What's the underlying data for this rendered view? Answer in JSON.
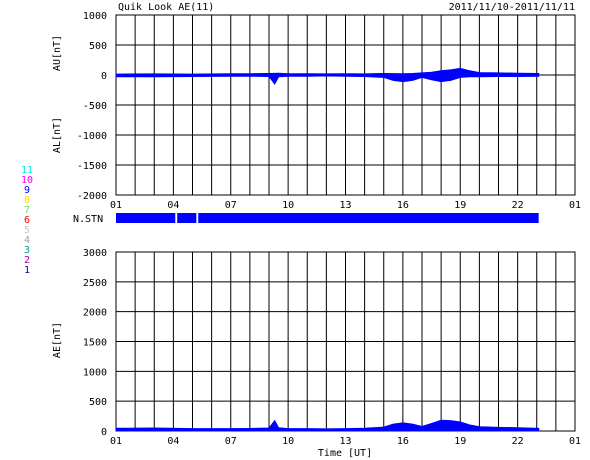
{
  "header": {
    "title": "Quik Look AE(11)",
    "date_range": "2011/11/10-2011/11/11"
  },
  "legend": {
    "stations": [
      {
        "label": "11",
        "color": "#00e5ee"
      },
      {
        "label": "10",
        "color": "#ff00ff"
      },
      {
        "label": "9",
        "color": "#0000ff"
      },
      {
        "label": "8",
        "color": "#ffd700"
      },
      {
        "label": "7",
        "color": "#66dd66"
      },
      {
        "label": "6",
        "color": "#ff0000"
      },
      {
        "label": "5",
        "color": "#c8c8c8"
      },
      {
        "label": "4",
        "color": "#a0a0a0"
      },
      {
        "label": "3",
        "color": "#00a0a0"
      },
      {
        "label": "2",
        "color": "#aa00aa"
      },
      {
        "label": "1",
        "color": "#0000aa"
      }
    ]
  },
  "chart_data": [
    {
      "type": "area",
      "name": "AU/AL",
      "ylabel_top": "AU[nT]",
      "ylabel_bottom": "AL[nT]",
      "ylim": [
        -2000,
        1000
      ],
      "yticks": [
        1000,
        500,
        0,
        -500,
        -1000,
        -1500,
        -2000
      ],
      "xlim": [
        1,
        25
      ],
      "xticks": [
        "01",
        "04",
        "07",
        "10",
        "13",
        "16",
        "19",
        "22",
        "01"
      ],
      "grid": true,
      "color": "#0000ff",
      "series": [
        {
          "name": "AU",
          "x": [
            1,
            3,
            5,
            7,
            8,
            9,
            9.5,
            10,
            11,
            12,
            13,
            14,
            15,
            16,
            16.5,
            17,
            17.5,
            18,
            18.5,
            19,
            19.5,
            20,
            21,
            22,
            23.1
          ],
          "values": [
            15,
            18,
            15,
            20,
            22,
            25,
            30,
            20,
            20,
            18,
            20,
            18,
            25,
            20,
            25,
            35,
            45,
            70,
            85,
            110,
            70,
            40,
            35,
            30,
            25
          ]
        },
        {
          "name": "AL",
          "x": [
            1,
            3,
            5,
            7,
            8,
            9,
            9.3,
            9.5,
            10,
            11,
            12,
            13,
            14,
            15,
            15.5,
            16,
            16.5,
            17,
            17.5,
            18,
            18.5,
            19,
            19.5,
            20,
            21,
            22,
            23.1
          ],
          "values": [
            -30,
            -30,
            -25,
            -20,
            -20,
            -25,
            -150,
            -30,
            -20,
            -20,
            -15,
            -20,
            -25,
            -40,
            -90,
            -110,
            -90,
            -40,
            -80,
            -110,
            -90,
            -40,
            -30,
            -30,
            -25,
            -25,
            -20
          ]
        }
      ]
    },
    {
      "type": "timeline",
      "name": "N.STN",
      "label": "N.STN",
      "color": "#0000ff",
      "segments": [
        [
          1,
          4.1
        ],
        [
          4.2,
          5.2
        ],
        [
          5.3,
          23.1
        ]
      ]
    },
    {
      "type": "area",
      "name": "AE",
      "ylabel": "AE[nT]",
      "ylim": [
        0,
        3000
      ],
      "yticks": [
        3000,
        2500,
        2000,
        1500,
        1000,
        500,
        0
      ],
      "xlim": [
        1,
        25
      ],
      "xticks": [
        "01",
        "04",
        "07",
        "10",
        "13",
        "16",
        "19",
        "22",
        "01"
      ],
      "xlabel": "Time [UT]",
      "grid": true,
      "color": "#0000ff",
      "x": [
        1,
        3,
        5,
        7,
        8,
        9,
        9.3,
        9.5,
        10,
        11,
        12,
        13,
        14,
        15,
        15.5,
        16,
        16.5,
        17,
        17.5,
        18,
        18.5,
        19,
        19.5,
        20,
        21,
        22,
        23.1
      ],
      "values": [
        45,
        50,
        40,
        40,
        42,
        50,
        175,
        55,
        40,
        40,
        35,
        40,
        45,
        65,
        115,
        135,
        115,
        75,
        125,
        180,
        175,
        150,
        100,
        70,
        60,
        55,
        45
      ]
    }
  ]
}
